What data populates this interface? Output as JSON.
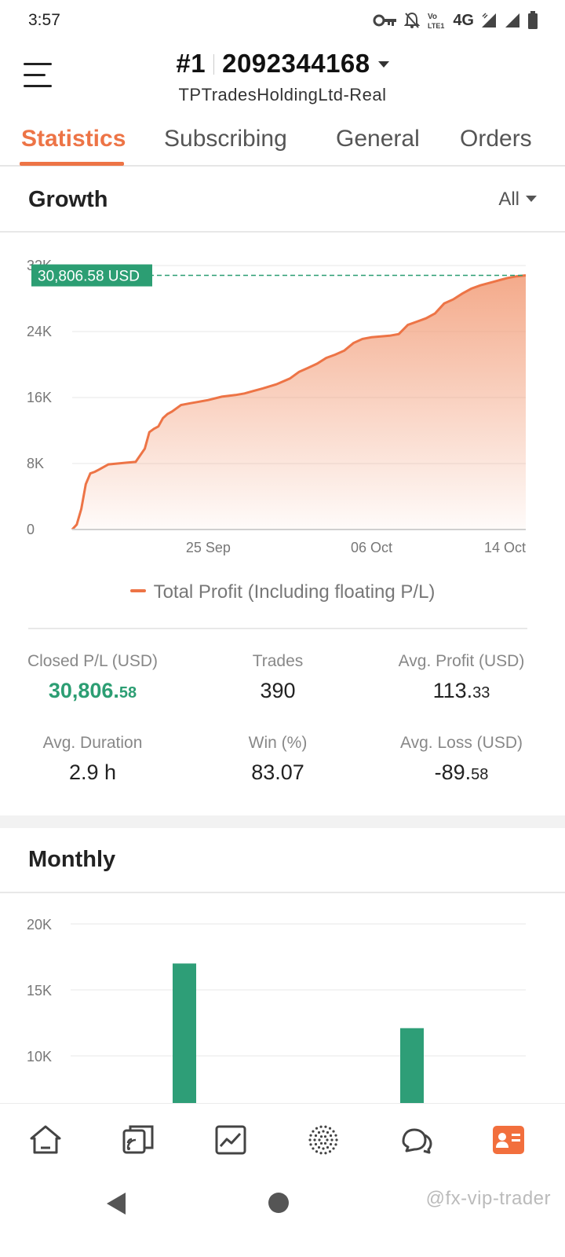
{
  "status_bar": {
    "time": "3:57",
    "network": "4G",
    "icons": [
      "vpn-key-icon",
      "notifications-off-icon",
      "volte-icon",
      "signal-icon",
      "signal-icon",
      "battery-icon"
    ]
  },
  "header": {
    "account_number": "#1",
    "account_id": "2092344168",
    "server": "TPTradesHoldingLtd-Real"
  },
  "tabs": [
    {
      "label": "Statistics",
      "active": true
    },
    {
      "label": "Subscribing",
      "active": false
    },
    {
      "label": "General",
      "active": false
    },
    {
      "label": "Orders",
      "active": false
    }
  ],
  "growth": {
    "title": "Growth",
    "range": "All",
    "current_value_label": "30,806.58 USD",
    "legend": "Total Profit (Including floating P/L)"
  },
  "stats": {
    "closed_pl": {
      "label": "Closed P/L (USD)",
      "int": "30,806.",
      "dec": "58"
    },
    "trades": {
      "label": "Trades",
      "value": "390"
    },
    "avg_profit": {
      "label": "Avg. Profit (USD)",
      "int": "113.",
      "dec": "33"
    },
    "avg_duration": {
      "label": "Avg. Duration",
      "value": "2.9 h"
    },
    "win": {
      "label": "Win (%)",
      "value": "83.07"
    },
    "avg_loss": {
      "label": "Avg. Loss (USD)",
      "int": "-89.",
      "dec": "58"
    }
  },
  "monthly": {
    "title": "Monthly"
  },
  "colors": {
    "accent": "#ed7446",
    "profit_green": "#2c9e73",
    "bar_green": "#2e9e77"
  },
  "bottom_nav": {
    "items": [
      "home-icon",
      "copy-trading-icon",
      "chart-icon",
      "community-icon",
      "messages-icon",
      "profile-icon"
    ],
    "active": "profile-icon"
  },
  "watermark": "@fx-vip-trader",
  "chart_data": [
    {
      "type": "area",
      "title": "",
      "xlabel": "",
      "ylabel": "",
      "ylim": [
        0,
        32000
      ],
      "yticks": [
        "0",
        "8K",
        "16K",
        "24K",
        "32K"
      ],
      "xticks": [
        {
          "label": "25 Sep",
          "x": 0.3
        },
        {
          "label": "06 Oct",
          "x": 0.66
        },
        {
          "label": "14 Oct",
          "x": 1.0
        }
      ],
      "grid": true,
      "legend": "bottom",
      "series": [
        {
          "name": "Total Profit (Including floating P/L)",
          "x": [
            0,
            0.01,
            0.02,
            0.03,
            0.04,
            0.05,
            0.06,
            0.08,
            0.1,
            0.12,
            0.14,
            0.16,
            0.17,
            0.18,
            0.19,
            0.2,
            0.21,
            0.22,
            0.24,
            0.26,
            0.28,
            0.3,
            0.33,
            0.36,
            0.38,
            0.4,
            0.42,
            0.45,
            0.48,
            0.5,
            0.52,
            0.54,
            0.56,
            0.58,
            0.6,
            0.62,
            0.64,
            0.66,
            0.68,
            0.7,
            0.72,
            0.74,
            0.76,
            0.78,
            0.8,
            0.82,
            0.84,
            0.86,
            0.88,
            0.9,
            0.92,
            0.94,
            0.96,
            0.98,
            1.0
          ],
          "values": [
            0,
            600,
            2500,
            5500,
            6800,
            7000,
            7300,
            7900,
            8000,
            8100,
            8200,
            9800,
            11800,
            12200,
            12500,
            13500,
            14000,
            14300,
            15100,
            15300,
            15500,
            15700,
            16100,
            16300,
            16500,
            16800,
            17100,
            17600,
            18300,
            19100,
            19600,
            20100,
            20800,
            21200,
            21700,
            22600,
            23100,
            23300,
            23400,
            23500,
            23700,
            24800,
            25200,
            25600,
            26200,
            27400,
            27900,
            28600,
            29200,
            29600,
            29900,
            30200,
            30500,
            30700,
            30806.58
          ]
        }
      ],
      "current_value": 30806.58
    },
    {
      "type": "bar",
      "title": "",
      "xlabel": "",
      "ylabel": "",
      "ylim": [
        0,
        20000
      ],
      "yticks_visible": [
        "10K",
        "15K",
        "20K"
      ],
      "grid": true,
      "series": [
        {
          "values": [
            17000,
            12100
          ]
        }
      ]
    }
  ]
}
